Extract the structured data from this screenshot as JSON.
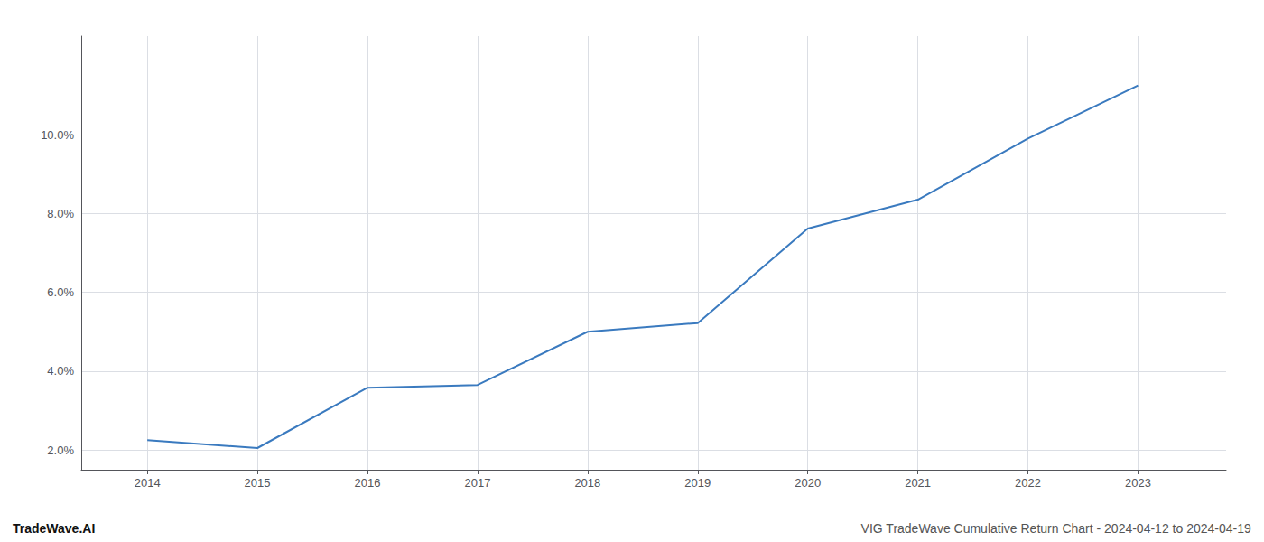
{
  "chart_data": {
    "type": "line",
    "x": [
      2014,
      2015,
      2016,
      2017,
      2018,
      2019,
      2020,
      2021,
      2022,
      2023
    ],
    "values": [
      2.25,
      2.05,
      3.58,
      3.65,
      5.0,
      5.22,
      7.62,
      8.35,
      9.9,
      11.25
    ],
    "color": "#3a7abf",
    "xlim": [
      2013.4,
      2023.8
    ],
    "ylim": [
      1.5,
      12.5
    ],
    "xticks": [
      2014,
      2015,
      2016,
      2017,
      2018,
      2019,
      2020,
      2021,
      2022,
      2023
    ],
    "yticks": [
      {
        "value": 2.0,
        "label": "2.0%"
      },
      {
        "value": 4.0,
        "label": "4.0%"
      },
      {
        "value": 6.0,
        "label": "6.0%"
      },
      {
        "value": 8.0,
        "label": "8.0%"
      },
      {
        "value": 10.0,
        "label": "10.0%"
      }
    ],
    "grid": true,
    "annotations": [
      "TradeWave.AI",
      "VIG TradeWave Cumulative Return Chart - 2024-04-12 to 2024-04-19"
    ]
  }
}
